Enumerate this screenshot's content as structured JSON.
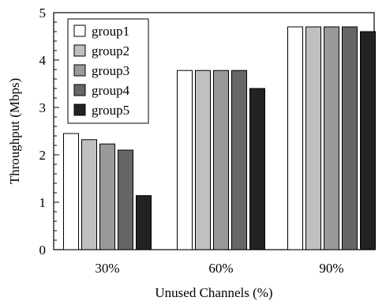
{
  "chart_data": {
    "type": "bar",
    "categories": [
      "30%",
      "60%",
      "90%"
    ],
    "series": [
      {
        "name": "group1",
        "values": [
          2.45,
          3.78,
          4.7
        ],
        "color": "#ffffff"
      },
      {
        "name": "group2",
        "values": [
          2.32,
          3.78,
          4.7
        ],
        "color": "#c0c0c0"
      },
      {
        "name": "group3",
        "values": [
          2.23,
          3.78,
          4.7
        ],
        "color": "#999999"
      },
      {
        "name": "group4",
        "values": [
          2.1,
          3.78,
          4.7
        ],
        "color": "#666666"
      },
      {
        "name": "group5",
        "values": [
          1.14,
          3.4,
          4.6
        ],
        "color": "#222222"
      }
    ],
    "xlabel": "Unused Channels (%)",
    "ylabel": "Throughput (Mbps)",
    "ylim": [
      0,
      5
    ],
    "yticks": [
      "0",
      "1",
      "2",
      "3",
      "4",
      "5"
    ],
    "legend": "top-left",
    "grid": false
  }
}
